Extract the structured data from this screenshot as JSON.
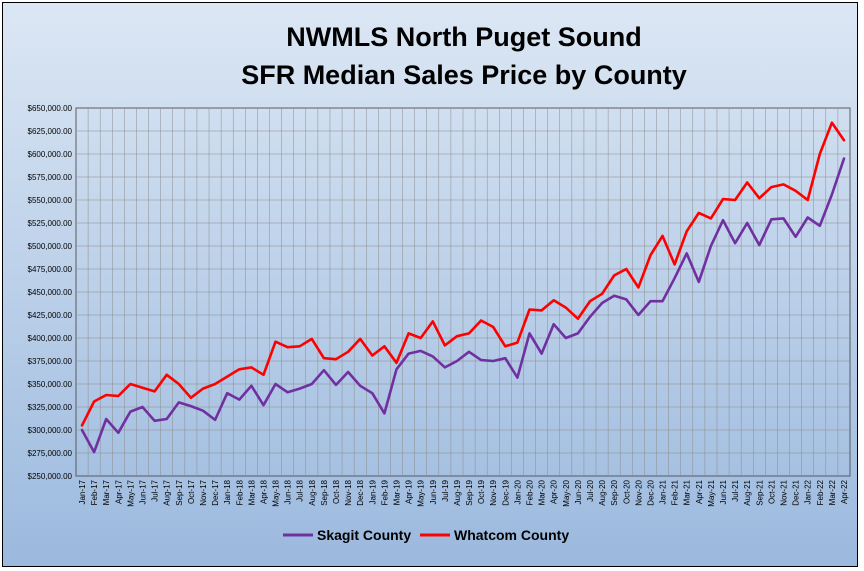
{
  "chart_data": {
    "type": "line",
    "title_line1": "NWMLS North Puget Sound",
    "title_line2": "SFR Median Sales Price by County",
    "xlabel": "",
    "ylabel": "",
    "ylim": [
      250000,
      650000
    ],
    "y_ticks": [
      250000,
      275000,
      300000,
      325000,
      350000,
      375000,
      400000,
      425000,
      450000,
      475000,
      500000,
      525000,
      550000,
      575000,
      600000,
      625000,
      650000
    ],
    "y_tick_labels": [
      "$250,000.00",
      "$275,000.00",
      "$300,000.00",
      "$325,000.00",
      "$350,000.00",
      "$375,000.00",
      "$400,000.00",
      "$425,000.00",
      "$450,000.00",
      "$475,000.00",
      "$500,000.00",
      "$525,000.00",
      "$550,000.00",
      "$575,000.00",
      "$600,000.00",
      "$625,000.00",
      "$650,000.00"
    ],
    "grid": true,
    "legend_position": "bottom",
    "categories": [
      "Jan-17",
      "Feb-17",
      "Mar-17",
      "Apr-17",
      "May-17",
      "Jun-17",
      "Jul-17",
      "Aug-17",
      "Sep-17",
      "Oct-17",
      "Nov-17",
      "Dec-17",
      "Jan-18",
      "Feb-18",
      "Mar-18",
      "Apr-18",
      "May-18",
      "Jun-18",
      "Jul-18",
      "Aug-18",
      "Sep-18",
      "Oct-18",
      "Nov-18",
      "Dec-18",
      "Jan-19",
      "Feb-19",
      "Mar-19",
      "Apr-19",
      "May-19",
      "Jun-19",
      "Jul-19",
      "Aug-19",
      "Sep-19",
      "Oct-19",
      "Nov-19",
      "Dec-19",
      "Jan-20",
      "Feb-20",
      "Mar-20",
      "Apr-20",
      "May-20",
      "Jun-20",
      "Jul-20",
      "Aug-20",
      "Sep-20",
      "Oct-20",
      "Nov-20",
      "Dec-20",
      "Jan-21",
      "Feb-21",
      "Mar-21",
      "Apr-21",
      "May-21",
      "Jun-21",
      "Jul-21",
      "Aug-21",
      "Sep-21",
      "Oct-21",
      "Nov-21",
      "Dec-21",
      "Jan-22",
      "Feb-22",
      "Mar-22",
      "Apr-22"
    ],
    "series": [
      {
        "name": "Skagit County",
        "color": "#7030A0",
        "values": [
          300000,
          276000,
          312000,
          297000,
          320000,
          325000,
          310000,
          312000,
          330000,
          326000,
          321000,
          311000,
          340000,
          333000,
          348000,
          327000,
          350000,
          341000,
          345000,
          350000,
          365000,
          349000,
          363000,
          348000,
          340000,
          318000,
          366000,
          383000,
          386000,
          380000,
          368000,
          375000,
          385000,
          376000,
          375000,
          378000,
          357000,
          405000,
          383000,
          415000,
          400000,
          405000,
          423000,
          438000,
          446000,
          442000,
          425000,
          440000,
          440000,
          465000,
          492000,
          461000,
          500000,
          528000,
          503000,
          525000,
          501000,
          529000,
          530000,
          510000,
          531000,
          522000,
          556000,
          595000
        ]
      },
      {
        "name": "Whatcom County",
        "color": "#FF0000",
        "values": [
          305000,
          331000,
          338000,
          337000,
          350000,
          346000,
          342000,
          360000,
          350000,
          335000,
          345000,
          350000,
          358000,
          366000,
          368000,
          360000,
          396000,
          390000,
          391000,
          399000,
          378000,
          377000,
          385000,
          399000,
          381000,
          391000,
          373000,
          405000,
          400000,
          418000,
          392000,
          402000,
          405000,
          419000,
          412000,
          391000,
          395000,
          431000,
          430000,
          441000,
          433000,
          421000,
          440000,
          448000,
          468000,
          475000,
          455000,
          490000,
          511000,
          480000,
          516000,
          536000,
          530000,
          551000,
          550000,
          569000,
          552000,
          564000,
          567000,
          560000,
          550000,
          600000,
          634000,
          615000
        ]
      }
    ]
  }
}
